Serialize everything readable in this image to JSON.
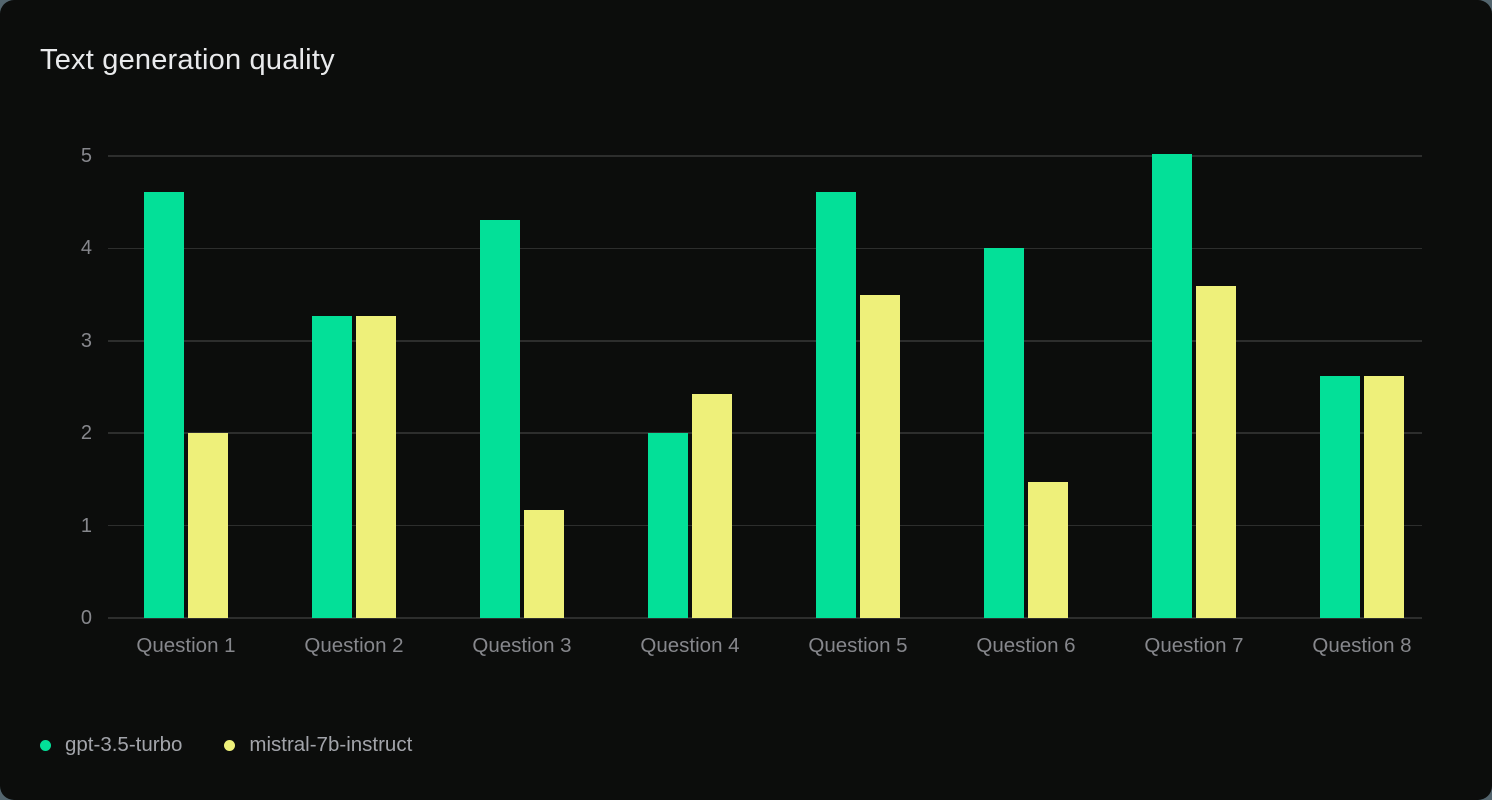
{
  "chart_data": {
    "type": "bar",
    "title": "Text generation quality",
    "categories": [
      "Question 1",
      "Question 2",
      "Question 3",
      "Question 4",
      "Question 5",
      "Question 6",
      "Question 7",
      "Question 8"
    ],
    "series": [
      {
        "name": "gpt-3.5-turbo",
        "color": "#03E098",
        "values": [
          4.61,
          3.27,
          4.31,
          2.0,
          4.61,
          4.0,
          5.02,
          2.62
        ]
      },
      {
        "name": "mistral-7b-instruct",
        "color": "#EEF07A",
        "values": [
          2.0,
          3.27,
          1.17,
          2.42,
          3.5,
          1.47,
          3.59,
          2.62
        ]
      }
    ],
    "xlabel": "",
    "ylabel": "",
    "ylim": [
      0,
      5
    ],
    "yticks": [
      0,
      1,
      2,
      3,
      4,
      5
    ],
    "grid": "horizontal",
    "legend_position": "bottom-left"
  },
  "colors": {
    "card_background": "#0C0D0C",
    "page_background": "#53656E",
    "gridline": "#2D2E2D",
    "axis_label_text": "#86878C",
    "legend_text": "#A2A4AA",
    "title_text": "#E9EAEC"
  }
}
